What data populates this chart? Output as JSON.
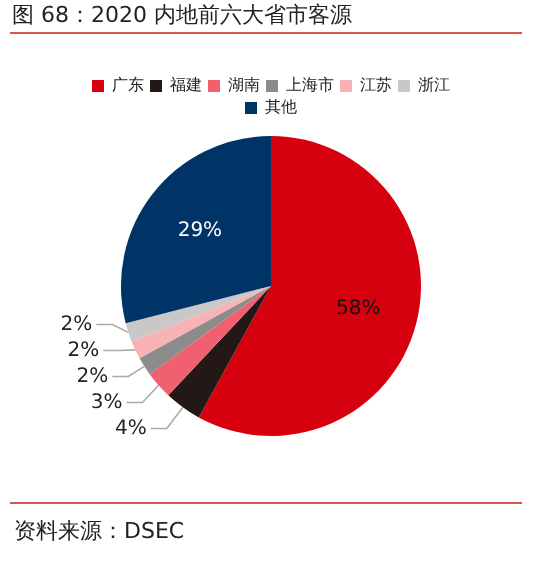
{
  "chart_data": {
    "type": "pie",
    "title": "图 68：2020 内地前六大省市客源",
    "categories": [
      "广东",
      "福建",
      "湖南",
      "上海市",
      "江苏",
      "浙江",
      "其他"
    ],
    "values": [
      58,
      4,
      3,
      2,
      2,
      2,
      29
    ],
    "colors": [
      "#d7000f",
      "#231815",
      "#f0606e",
      "#8c8c8c",
      "#f7b3b3",
      "#c8c8c8",
      "#003366"
    ],
    "value_labels": [
      "58%",
      "4%",
      "3%",
      "2%",
      "2%",
      "2%",
      "29%"
    ],
    "legend": "top",
    "annotations": [
      "资料来源：DSEC"
    ]
  }
}
